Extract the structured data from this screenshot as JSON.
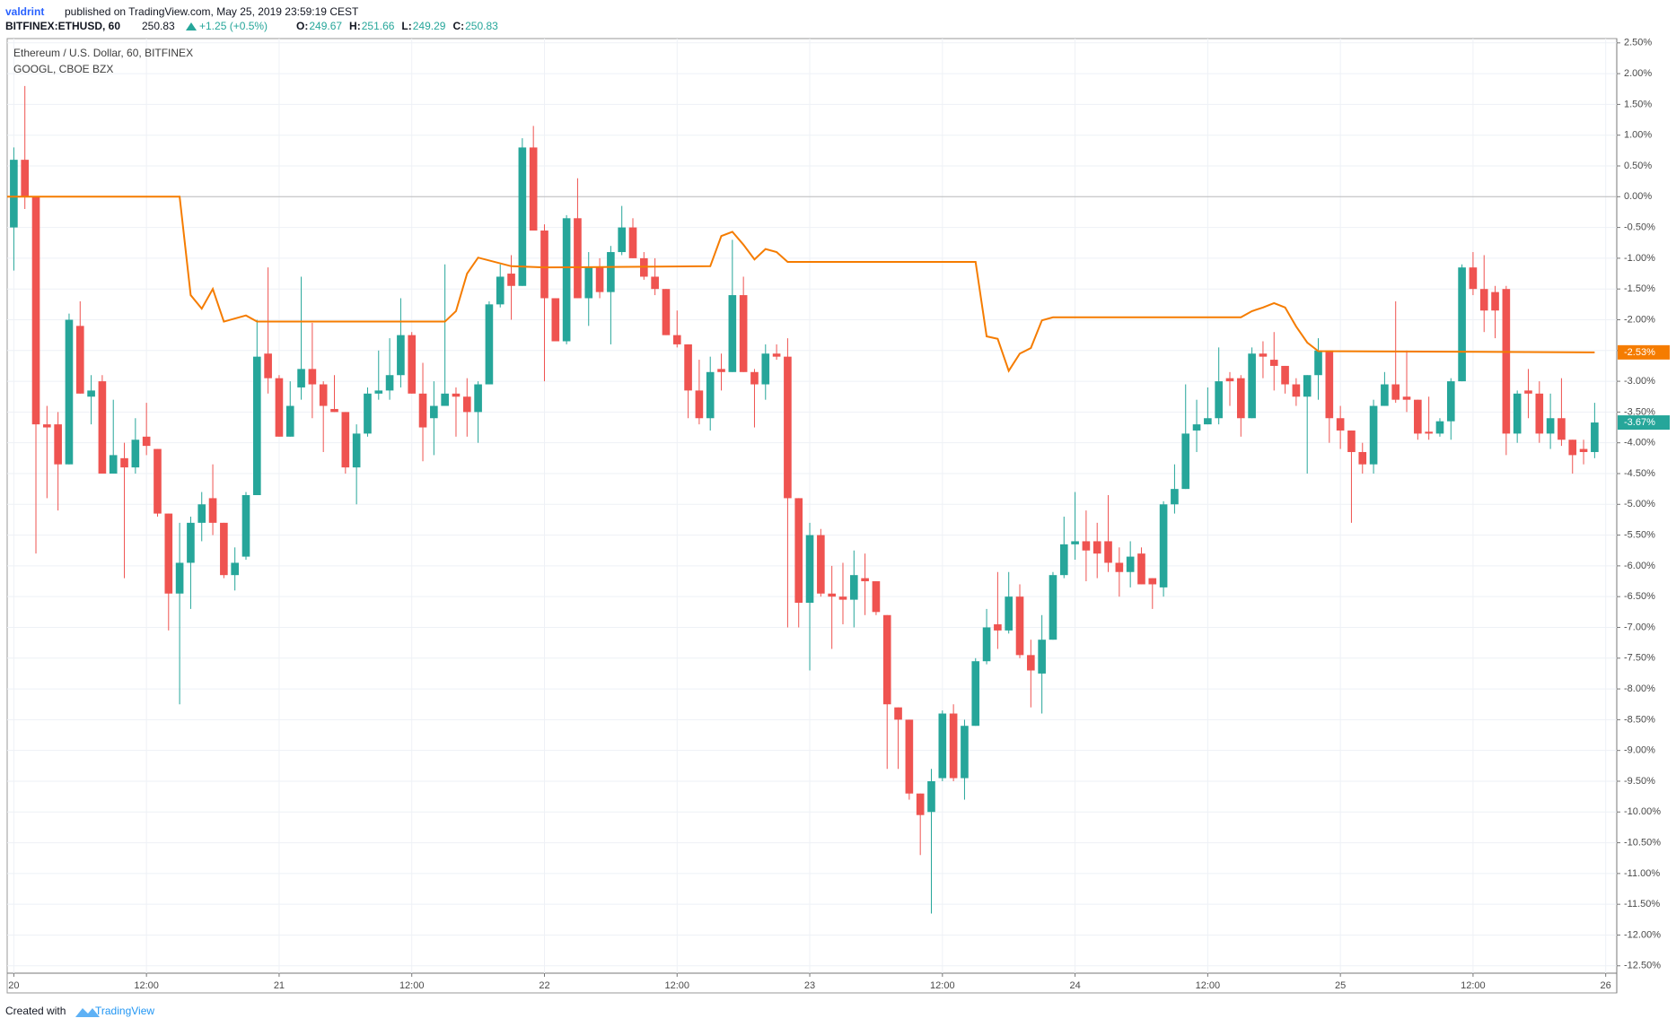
{
  "header": {
    "author": "valdrint",
    "published": "published on TradingView.com, May 25, 2019 23:59:19 CEST",
    "ticker": "BITFINEX:ETHUSD, 60",
    "price": "250.83",
    "change": "+1.25 (+0.5%)",
    "ohlc": [
      {
        "label": "O:",
        "value": "249.67"
      },
      {
        "label": "H:",
        "value": "251.66"
      },
      {
        "label": "L:",
        "value": "249.29"
      },
      {
        "label": "C:",
        "value": "250.83"
      }
    ]
  },
  "footer": {
    "created": "Created with",
    "brand": "TradingView"
  },
  "chart_data": {
    "type": "candlestick",
    "xlim": [
      -0.6,
      145
    ],
    "ylim": [
      -12.62,
      2.57
    ],
    "baseline": 0,
    "grid": true,
    "xticks": [
      {
        "value": 0,
        "label": "20"
      },
      {
        "value": 12,
        "label": "12:00"
      },
      {
        "value": 24,
        "label": "21"
      },
      {
        "value": 36,
        "label": "12:00"
      },
      {
        "value": 48,
        "label": "22"
      },
      {
        "value": 60,
        "label": "12:00"
      },
      {
        "value": 72,
        "label": "23"
      },
      {
        "value": 84,
        "label": "12:00"
      },
      {
        "value": 96,
        "label": "24"
      },
      {
        "value": 108,
        "label": "12:00"
      },
      {
        "value": 120,
        "label": "25"
      },
      {
        "value": 132,
        "label": "12:00"
      },
      {
        "value": 144,
        "label": "26"
      }
    ],
    "yticks": [
      {
        "value": 2.5,
        "label": "2.50%"
      },
      {
        "value": 2,
        "label": "2.00%"
      },
      {
        "value": 1.5,
        "label": "1.50%"
      },
      {
        "value": 1,
        "label": "1.00%"
      },
      {
        "value": 0.5,
        "label": "0.50%"
      },
      {
        "value": 0,
        "label": "0.00%"
      },
      {
        "value": -0.5,
        "label": "-0.50%"
      },
      {
        "value": -1,
        "label": "-1.00%"
      },
      {
        "value": -1.5,
        "label": "-1.50%"
      },
      {
        "value": -2,
        "label": "-2.00%"
      },
      {
        "value": -2.5,
        "label": "-2.50%"
      },
      {
        "value": -3,
        "label": "-3.00%"
      },
      {
        "value": -3.5,
        "label": "-3.50%"
      },
      {
        "value": -4,
        "label": "-4.00%"
      },
      {
        "value": -4.5,
        "label": "-4.50%"
      },
      {
        "value": -5,
        "label": "-5.00%"
      },
      {
        "value": -5.5,
        "label": "-5.50%"
      },
      {
        "value": -6,
        "label": "-6.00%"
      },
      {
        "value": -6.5,
        "label": "-6.50%"
      },
      {
        "value": -7,
        "label": "-7.00%"
      },
      {
        "value": -7.5,
        "label": "-7.50%"
      },
      {
        "value": -8,
        "label": "-8.00%"
      },
      {
        "value": -8.5,
        "label": "-8.50%"
      },
      {
        "value": -9,
        "label": "-9.00%"
      },
      {
        "value": -9.5,
        "label": "-9.50%"
      },
      {
        "value": -10,
        "label": "-10.00%"
      },
      {
        "value": -10.5,
        "label": "-10.50%"
      },
      {
        "value": -11,
        "label": "-11.00%"
      },
      {
        "value": -11.5,
        "label": "-11.50%"
      },
      {
        "value": -12,
        "label": "-12.00%"
      },
      {
        "value": -12.5,
        "label": "-12.50%"
      }
    ],
    "series": [
      {
        "name": "Ethereum / U.S. Dollar, 60, BITFINEX",
        "type": "candlestick",
        "up_color": "#26a69a",
        "down_color": "#ef5350",
        "last_label": "-3.67%",
        "x": [
          0,
          1,
          2,
          3,
          4,
          5,
          6,
          7,
          8,
          9,
          10,
          11,
          12,
          13,
          14,
          15,
          16,
          17,
          18,
          19,
          20,
          21,
          22,
          23,
          24,
          25,
          26,
          27,
          28,
          29,
          30,
          31,
          32,
          33,
          34,
          35,
          36,
          37,
          38,
          39,
          40,
          41,
          42,
          43,
          44,
          45,
          46,
          47,
          48,
          49,
          50,
          51,
          52,
          53,
          54,
          55,
          56,
          57,
          58,
          59,
          60,
          61,
          62,
          63,
          64,
          65,
          66,
          67,
          68,
          69,
          70,
          71,
          72,
          73,
          74,
          75,
          76,
          77,
          78,
          79,
          80,
          81,
          82,
          83,
          84,
          85,
          86,
          87,
          88,
          89,
          90,
          91,
          92,
          93,
          94,
          95,
          96,
          97,
          98,
          99,
          100,
          101,
          102,
          103,
          104,
          105,
          106,
          107,
          108,
          109,
          110,
          111,
          112,
          113,
          114,
          115,
          116,
          117,
          118,
          119,
          120,
          121,
          122,
          123,
          124,
          125,
          126,
          127,
          128,
          129,
          130,
          131,
          132,
          133,
          134,
          135,
          136,
          137,
          138,
          139,
          140,
          141,
          142,
          143
        ],
        "open": [
          -0.5,
          0.6,
          0,
          -3.7,
          -3.7,
          -4.35,
          -2.1,
          -3.25,
          -3.0,
          -4.5,
          -4.25,
          -4.4,
          -3.9,
          -4.1,
          -5.15,
          -6.45,
          -5.95,
          -5.3,
          -4.9,
          -5.3,
          -6.15,
          -5.85,
          -4.85,
          -2.55,
          -2.95,
          -3.9,
          -3.1,
          -2.8,
          -3.05,
          -3.45,
          -3.5,
          -4.4,
          -3.85,
          -3.2,
          -3.15,
          -2.9,
          -2.25,
          -3.2,
          -3.6,
          -3.4,
          -3.2,
          -3.25,
          -3.5,
          -3.05,
          -1.75,
          -1.25,
          -1.45,
          0.8,
          -0.55,
          -1.65,
          -2.35,
          -0.35,
          -1.65,
          -1.15,
          -1.55,
          -0.9,
          -0.5,
          -1.0,
          -1.3,
          -1.5,
          -2.25,
          -2.4,
          -3.15,
          -3.6,
          -2.8,
          -2.85,
          -1.6,
          -2.85,
          -3.05,
          -2.55,
          -2.6,
          -4.9,
          -6.6,
          -5.5,
          -6.45,
          -6.5,
          -6.55,
          -6.2,
          -6.25,
          -6.8,
          -8.3,
          -8.5,
          -9.7,
          -10.0,
          -9.45,
          -8.4,
          -9.45,
          -8.6,
          -7.55,
          -6.95,
          -7.05,
          -6.5,
          -7.45,
          -7.75,
          -7.2,
          -6.15,
          -5.65,
          -5.6,
          -5.6,
          -5.6,
          -5.95,
          -6.1,
          -5.8,
          -6.2,
          -6.35,
          -5.0,
          -4.75,
          -3.8,
          -3.7,
          -3.6,
          -2.95,
          -2.95,
          -3.6,
          -2.55,
          -2.65,
          -2.75,
          -3.05,
          -3.25,
          -2.9,
          -2.5,
          -3.6,
          -3.8,
          -4.15,
          -4.35,
          -3.4,
          -3.05,
          -3.25,
          -3.3,
          -3.82,
          -3.85,
          -3.65,
          -3.0,
          -1.15,
          -1.5,
          -1.55,
          -1.5,
          -3.85,
          -3.15,
          -3.2,
          -3.85,
          -3.6,
          -3.95,
          -4.1,
          -4.15
        ],
        "high": [
          0.8,
          1.8,
          0,
          -3.4,
          -3.5,
          -1.9,
          -1.7,
          -2.9,
          -2.9,
          -3.3,
          -4.0,
          -3.6,
          -3.35,
          -4.1,
          -5.15,
          -5.3,
          -5.2,
          -4.8,
          -4.35,
          -5.3,
          -5.7,
          -4.8,
          -2.0,
          -1.15,
          -2.9,
          -3.0,
          -1.3,
          -2.05,
          -3.0,
          -2.9,
          -3.5,
          -3.7,
          -3.1,
          -2.5,
          -2.3,
          -1.65,
          -2.2,
          -2.7,
          -3.0,
          -1.1,
          -3.1,
          -2.95,
          -3.0,
          -1.7,
          -1.1,
          -0.95,
          0.95,
          1.15,
          -0.45,
          -1.65,
          -0.3,
          0.3,
          -0.9,
          -1.0,
          -0.8,
          -0.15,
          -0.35,
          -0.9,
          -1.0,
          -1.5,
          -1.85,
          -2.4,
          -2.65,
          -2.6,
          -2.55,
          -0.7,
          -1.3,
          -2.8,
          -2.4,
          -2.4,
          -2.3,
          -4.9,
          -5.3,
          -5.4,
          -6.0,
          -5.95,
          -5.75,
          -5.8,
          -6.25,
          -6.8,
          -8.3,
          -8.5,
          -9.7,
          -9.3,
          -8.35,
          -8.25,
          -8.5,
          -7.5,
          -6.7,
          -6.1,
          -6.1,
          -6.3,
          -7.2,
          -6.8,
          -6.1,
          -5.2,
          -4.8,
          -5.1,
          -5.3,
          -4.85,
          -5.7,
          -5.6,
          -5.7,
          -6.2,
          -4.95,
          -4.35,
          -3.05,
          -3.3,
          -3.1,
          -2.45,
          -2.85,
          -2.9,
          -2.45,
          -2.35,
          -2.2,
          -2.75,
          -2.95,
          -2.9,
          -2.3,
          -2.5,
          -3.4,
          -3.8,
          -4.0,
          -3.3,
          -2.85,
          -1.7,
          -2.5,
          -3.3,
          -3.25,
          -3.6,
          -2.95,
          -1.1,
          -0.9,
          -0.95,
          -1.45,
          -1.45,
          -3.15,
          -2.8,
          -3.0,
          -3.2,
          -2.95,
          -3.95,
          -3.95,
          -3.35
        ],
        "low": [
          -1.2,
          -0.2,
          -5.8,
          -4.9,
          -5.1,
          -4.35,
          -3.2,
          -3.7,
          -4.5,
          -4.5,
          -6.2,
          -4.5,
          -4.2,
          -5.2,
          -7.05,
          -8.25,
          -6.7,
          -5.6,
          -5.5,
          -6.2,
          -6.4,
          -5.9,
          -4.85,
          -3.2,
          -3.9,
          -3.9,
          -3.3,
          -3.6,
          -4.15,
          -3.5,
          -4.5,
          -5.0,
          -3.9,
          -3.3,
          -3.3,
          -3.1,
          -3.2,
          -4.3,
          -4.2,
          -3.4,
          -3.9,
          -3.9,
          -4.0,
          -3.05,
          -1.8,
          -2.0,
          -1.45,
          -0.55,
          -3.0,
          -2.35,
          -2.4,
          -1.65,
          -2.1,
          -1.65,
          -2.4,
          -0.95,
          -1.0,
          -1.35,
          -1.6,
          -2.25,
          -2.45,
          -3.6,
          -3.7,
          -3.8,
          -3.15,
          -2.85,
          -2.85,
          -3.75,
          -3.3,
          -2.65,
          -7.0,
          -7.0,
          -7.7,
          -6.5,
          -7.35,
          -6.95,
          -7.0,
          -6.8,
          -6.8,
          -9.3,
          -9.3,
          -9.8,
          -10.7,
          -11.65,
          -9.5,
          -9.5,
          -9.8,
          -8.6,
          -7.6,
          -7.35,
          -7.1,
          -7.5,
          -8.3,
          -8.4,
          -7.2,
          -6.2,
          -5.9,
          -6.25,
          -6.2,
          -6.1,
          -6.5,
          -6.35,
          -6.3,
          -6.7,
          -6.5,
          -5.15,
          -4.75,
          -4.15,
          -3.7,
          -3.7,
          -3.4,
          -3.9,
          -3.6,
          -2.95,
          -3.15,
          -3.2,
          -3.4,
          -4.5,
          -3.3,
          -4.0,
          -4.1,
          -5.3,
          -4.5,
          -4.5,
          -3.4,
          -3.35,
          -3.5,
          -3.95,
          -3.95,
          -3.9,
          -3.95,
          -3.0,
          -1.6,
          -2.2,
          -2.3,
          -4.2,
          -4.0,
          -3.6,
          -4.0,
          -4.1,
          -4.05,
          -4.5,
          -4.35,
          -4.25
        ],
        "close": [
          0.6,
          0,
          -3.7,
          -3.75,
          -4.35,
          -2.0,
          -3.2,
          -3.15,
          -4.5,
          -4.2,
          -4.4,
          -3.95,
          -4.05,
          -5.15,
          -6.45,
          -5.95,
          -5.3,
          -5.0,
          -5.3,
          -6.15,
          -5.95,
          -4.85,
          -2.6,
          -2.95,
          -3.9,
          -3.4,
          -2.8,
          -3.05,
          -3.4,
          -3.5,
          -4.4,
          -3.85,
          -3.2,
          -3.15,
          -2.9,
          -2.25,
          -3.2,
          -3.75,
          -3.4,
          -3.2,
          -3.25,
          -3.5,
          -3.05,
          -1.75,
          -1.3,
          -1.45,
          0.8,
          -0.55,
          -1.65,
          -2.35,
          -0.35,
          -1.65,
          -1.15,
          -1.55,
          -0.9,
          -0.5,
          -1.0,
          -1.3,
          -1.5,
          -2.25,
          -2.4,
          -3.15,
          -3.6,
          -2.85,
          -2.85,
          -1.6,
          -2.85,
          -3.05,
          -2.55,
          -2.6,
          -4.9,
          -6.6,
          -5.5,
          -6.45,
          -6.5,
          -6.55,
          -6.15,
          -6.25,
          -6.75,
          -8.25,
          -8.5,
          -9.7,
          -10.05,
          -9.5,
          -8.4,
          -9.45,
          -8.6,
          -7.55,
          -7.0,
          -7.05,
          -6.5,
          -7.45,
          -7.7,
          -7.2,
          -6.15,
          -5.65,
          -5.6,
          -5.75,
          -5.8,
          -5.95,
          -6.1,
          -5.85,
          -6.3,
          -6.3,
          -5.0,
          -4.75,
          -3.85,
          -3.7,
          -3.6,
          -3.0,
          -3.0,
          -3.6,
          -2.55,
          -2.6,
          -2.75,
          -3.05,
          -3.25,
          -2.9,
          -2.5,
          -3.6,
          -3.8,
          -4.15,
          -4.35,
          -3.4,
          -3.05,
          -3.3,
          -3.3,
          -3.85,
          -3.85,
          -3.65,
          -3.0,
          -1.15,
          -1.5,
          -1.85,
          -1.85,
          -3.85,
          -3.2,
          -3.2,
          -3.85,
          -3.6,
          -3.95,
          -4.2,
          -4.15,
          -3.67
        ]
      },
      {
        "name": "GOOGL, CBOE BZX",
        "type": "line",
        "color": "#f57c00",
        "last_label": "-2.53%",
        "x": [
          -0.6,
          15,
          16,
          17,
          18,
          19,
          21,
          22,
          39,
          40,
          41,
          42,
          45,
          48,
          63,
          64,
          65,
          66,
          67,
          68,
          69,
          70,
          87,
          88,
          89,
          90,
          91,
          92,
          93,
          94,
          111,
          112,
          113,
          114,
          115,
          116,
          117,
          118,
          143
        ],
        "values": [
          0,
          0,
          -1.6,
          -1.82,
          -1.5,
          -2.03,
          -1.93,
          -2.03,
          -2.03,
          -1.86,
          -1.25,
          -0.99,
          -1.13,
          -1.15,
          -1.13,
          -0.64,
          -0.57,
          -0.78,
          -1.02,
          -0.85,
          -0.9,
          -1.06,
          -1.06,
          -2.27,
          -2.31,
          -2.83,
          -2.55,
          -2.46,
          -2.01,
          -1.96,
          -1.96,
          -1.86,
          -1.8,
          -1.73,
          -1.8,
          -2.11,
          -2.37,
          -2.51,
          -2.53
        ]
      }
    ]
  }
}
